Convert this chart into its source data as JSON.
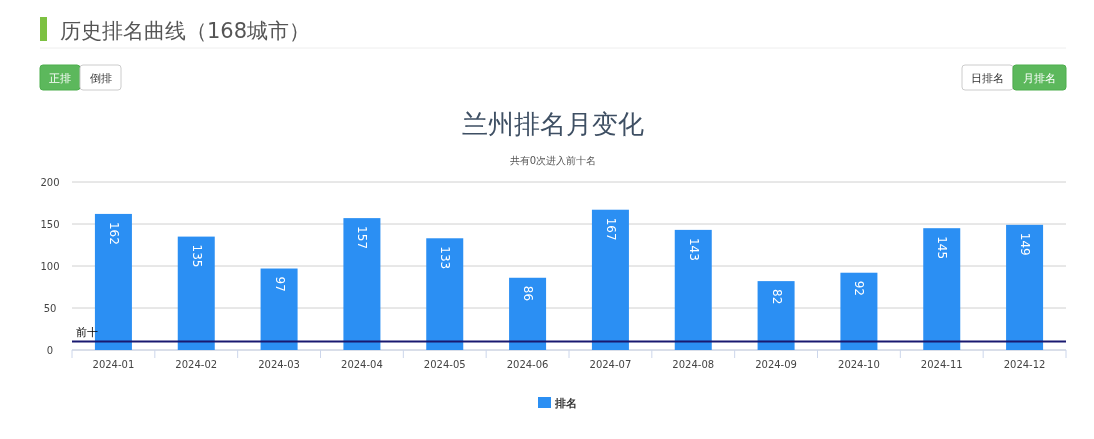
{
  "chart_data": {
    "type": "bar",
    "title": "兰州排名月变化",
    "subtitle": "共有0次进入前十名",
    "annotations": [
      "历史排名曲线（168城市）",
      "正排",
      "倒排",
      "日排名",
      "月排名"
    ],
    "categories": [
      "2024-01",
      "2024-02",
      "2024-03",
      "2024-04",
      "2024-05",
      "2024-06",
      "2024-07",
      "2024-08",
      "2024-09",
      "2024-10",
      "2024-11",
      "2024-12"
    ],
    "series": [
      {
        "name": "排名",
        "color": "#2b8ff3",
        "values": [
          162,
          135,
          97,
          157,
          133,
          86,
          167,
          143,
          82,
          92,
          145,
          149
        ]
      }
    ],
    "ylim": [
      0,
      200
    ],
    "yticks": [
      0,
      50,
      100,
      150,
      200
    ],
    "grid": "y",
    "data_labels": true,
    "legend": "bottom",
    "ref_lines": [
      {
        "axis": "y",
        "value": 10,
        "label": "前十",
        "color": "#191970"
      }
    ]
  }
}
